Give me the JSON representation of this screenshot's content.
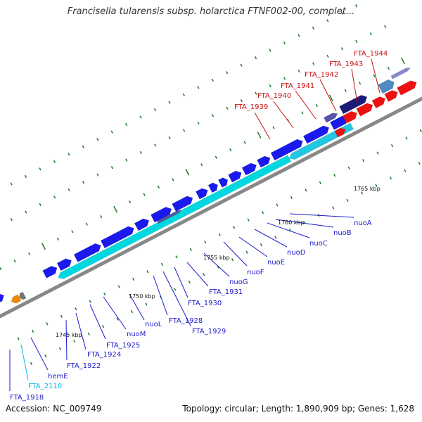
{
  "title": "Francisella tularensis subsp. holarctica FTNF002-00, complet...",
  "footer": {
    "accession": "Accession: NC_009749",
    "summary": "Topology: circular; Length: 1,890,909 bp; Genes: 1,628"
  },
  "colors": {
    "backbone": "#888888",
    "cds_forward": "#1a1aee",
    "cds_reverse": "#00d8e0",
    "highlight": "#ee1111",
    "rna": "#00bbee",
    "tick": "#1e7a1e",
    "label_blue": "#1a1acc",
    "label_red": "#cc1111"
  },
  "scale_labels": [
    "1745 kbp",
    "1750 kbp",
    "1755 kbp",
    "1760 kbp",
    "1765 kbp"
  ],
  "gene_labels": {
    "top_red": [
      "FTA_1939",
      "FTA_1940",
      "FTA_1941",
      "FTA_1942",
      "FTA_1943",
      "FTA_1944"
    ],
    "bottom": [
      "FTA_1918",
      "FTA_2110",
      "hemE",
      "FTA_1922",
      "FTA_1924",
      "FTA_1925",
      "nuoM",
      "nuoL",
      "FTA_1928",
      "FTA_1929",
      "FTA_1930",
      "FTA_1931",
      "nuoG",
      "nuoF",
      "nuoE",
      "nuoD",
      "nuoC",
      "nuoB",
      "nuoA"
    ]
  }
}
